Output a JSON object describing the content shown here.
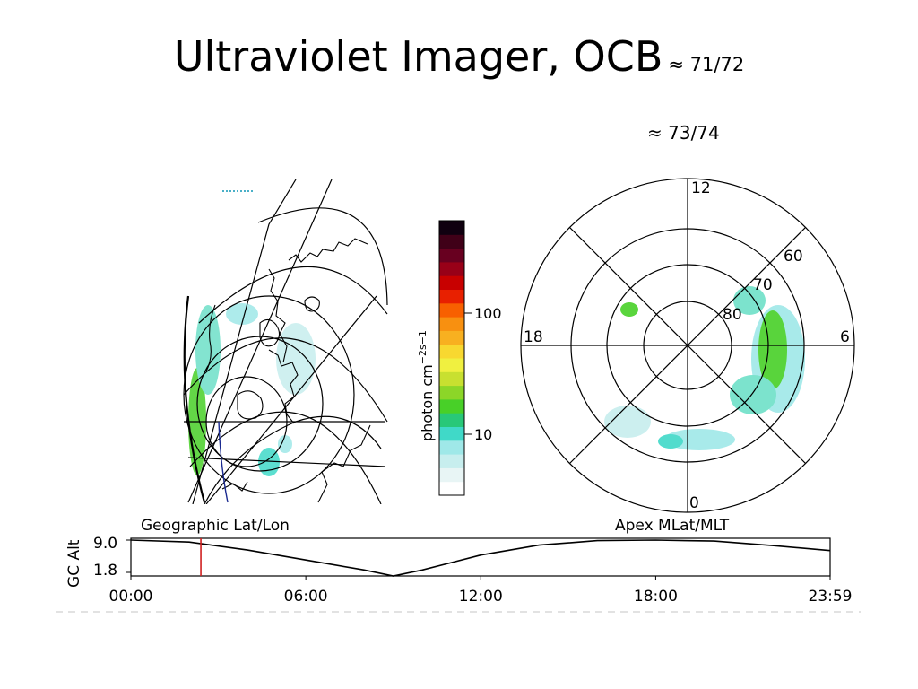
{
  "slide": {
    "title": "Ultraviolet Imager, OCB",
    "title_annotation": "≈ 71/72",
    "annotation_right": "≈ 73/74"
  },
  "chart_data": [
    {
      "type": "heatmap",
      "panel": "geographic",
      "caption": "Geographic Lat/Lon",
      "colorbar": {
        "label": "photon cm",
        "label_exponents": [
          "−2",
          "s",
          "−1"
        ],
        "scale": "log",
        "ticks": [
          10,
          100
        ],
        "tick_labels": [
          "10",
          "100"
        ],
        "colors": [
          "#ffffff",
          "#e8f5f5",
          "#c7eeee",
          "#9fe8e8",
          "#40d9c8",
          "#28c878",
          "#48d028",
          "#8cd628",
          "#c8e030",
          "#f0f040",
          "#f8d830",
          "#f8b020",
          "#f89010",
          "#f86000",
          "#e82000",
          "#c80000",
          "#980018",
          "#680020",
          "#400018",
          "#100010"
        ]
      }
    },
    {
      "type": "heatmap",
      "panel": "polar",
      "caption": "Apex MLat/MLT",
      "mlt_labels": [
        "12",
        "18",
        "6",
        "0"
      ],
      "mlat_labels": [
        "60",
        "70",
        "80"
      ]
    },
    {
      "type": "line",
      "panel": "altitude",
      "ylabel": "GC Alt",
      "y_ticks": [
        "9.0",
        "1.8"
      ],
      "ylim": [
        1.8,
        9.0
      ],
      "x_ticks": [
        "00:00",
        "06:00",
        "12:00",
        "18:00",
        "23:59"
      ],
      "xlim_hours": [
        0,
        23.983
      ],
      "marker_time_hours": 2.4,
      "series": [
        {
          "x": [
            0,
            2,
            4,
            6,
            8,
            9.0,
            10,
            12,
            14,
            16,
            18,
            20,
            22,
            23.983
          ],
          "y": [
            9.0,
            8.6,
            7.0,
            5.0,
            3.0,
            1.8,
            3.0,
            6.0,
            8.0,
            8.9,
            9.0,
            8.8,
            7.9,
            6.9
          ]
        }
      ]
    }
  ]
}
